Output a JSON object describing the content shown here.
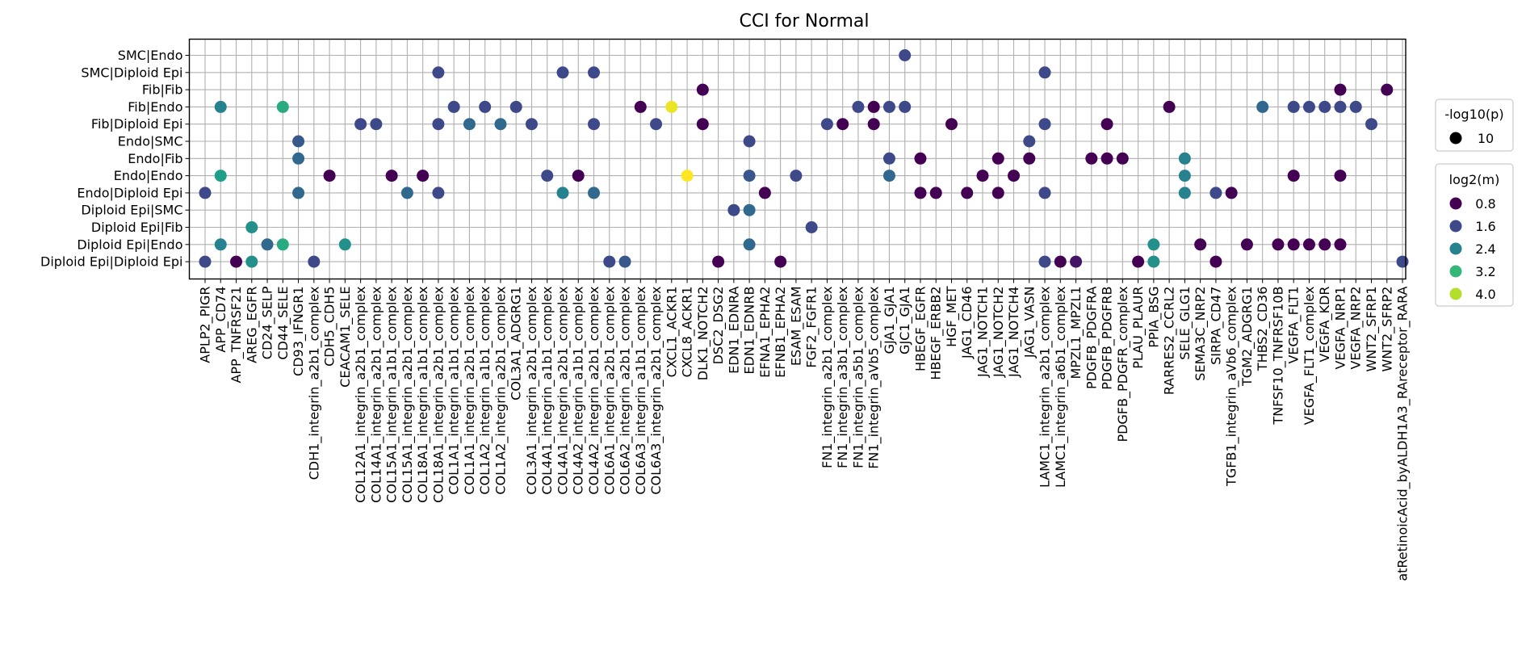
{
  "chart_data": {
    "type": "scatter",
    "title": "CCI for Normal",
    "xlabel": "",
    "ylabel": "",
    "grid": true,
    "legend_position": "right",
    "x_categories": [
      "APLP2_PIGR",
      "APP_CD74",
      "APP_TNFRSF21",
      "AREG_EGFR",
      "CD24_SELP",
      "CD44_SELE",
      "CD93_IFNGR1",
      "CDH1_integrin_a2b1_complex",
      "CDH5_CDH5",
      "CEACAM1_SELE",
      "COL12A1_integrin_a2b1_complex",
      "COL14A1_integrin_a2b1_complex",
      "COL15A1_integrin_a1b1_complex",
      "COL15A1_integrin_a2b1_complex",
      "COL18A1_integrin_a1b1_complex",
      "COL18A1_integrin_a2b1_complex",
      "COL1A1_integrin_a1b1_complex",
      "COL1A1_integrin_a2b1_complex",
      "COL1A2_integrin_a1b1_complex",
      "COL1A2_integrin_a2b1_complex",
      "COL3A1_ADGRG1",
      "COL3A1_integrin_a2b1_complex",
      "COL4A1_integrin_a1b1_complex",
      "COL4A1_integrin_a2b1_complex",
      "COL4A2_integrin_a1b1_complex",
      "COL4A2_integrin_a2b1_complex",
      "COL6A1_integrin_a2b1_complex",
      "COL6A2_integrin_a2b1_complex",
      "COL6A3_integrin_a1b1_complex",
      "COL6A3_integrin_a2b1_complex",
      "CXCL1_ACKR1",
      "CXCL8_ACKR1",
      "DLK1_NOTCH2",
      "DSC2_DSG2",
      "EDN1_EDNRA",
      "EDN1_EDNRB",
      "EFNA1_EPHA2",
      "EFNB1_EPHA2",
      "ESAM_ESAM",
      "FGF2_FGFR1",
      "FN1_integrin_a2b1_complex",
      "FN1_integrin_a3b1_complex",
      "FN1_integrin_a5b1_complex",
      "FN1_integrin_aVb5_complex",
      "GJA1_GJA1",
      "GJC1_GJA1",
      "HBEGF_EGFR",
      "HBEGF_ERBB2",
      "HGF_MET",
      "JAG1_CD46",
      "JAG1_NOTCH1",
      "JAG1_NOTCH2",
      "JAG1_NOTCH4",
      "JAG1_VASN",
      "LAMC1_integrin_a2b1_complex",
      "LAMC1_integrin_a6b1_complex",
      "MPZL1_MPZL1",
      "PDGFB_PDGFRA",
      "PDGFB_PDGFRB",
      "PDGFB_PDGFR_complex",
      "PLAU_PLAUR",
      "PPIA_BSG",
      "RARRES2_CCRL2",
      "SELE_GLG1",
      "SEMA3C_NRP2",
      "SIRPA_CD47",
      "TGFB1_integrin_aVb6_complex",
      "TGM2_ADGRG1",
      "THBS2_CD36",
      "TNFSF10_TNFRSF10B",
      "VEGFA_FLT1",
      "VEGFA_FLT1_complex",
      "VEGFA_KDR",
      "VEGFA_NRP1",
      "VEGFA_NRP2",
      "WNT2_SFRP1",
      "WNT2_SFRP2",
      "atRetinoicAcid_byALDH1A3_RAreceptor_RARA"
    ],
    "y_categories": [
      "SMC|Endo",
      "SMC|Diploid Epi",
      "Fib|Fib",
      "Fib|Endo",
      "Fib|Diploid Epi",
      "Endo|SMC",
      "Endo|Fib",
      "Endo|Endo",
      "Endo|Diploid Epi",
      "Diploid Epi|SMC",
      "Diploid Epi|Fib",
      "Diploid Epi|Endo",
      "Diploid Epi|Diploid Epi"
    ],
    "points": [
      {
        "x": "GJC1_GJA1",
        "y": "SMC|Endo",
        "log2m": 1.6
      },
      {
        "x": "COL18A1_integrin_a2b1_complex",
        "y": "SMC|Diploid Epi",
        "log2m": 1.6
      },
      {
        "x": "COL4A1_integrin_a2b1_complex",
        "y": "SMC|Diploid Epi",
        "log2m": 1.6
      },
      {
        "x": "COL4A2_integrin_a2b1_complex",
        "y": "SMC|Diploid Epi",
        "log2m": 1.6
      },
      {
        "x": "LAMC1_integrin_a2b1_complex",
        "y": "SMC|Diploid Epi",
        "log2m": 1.6
      },
      {
        "x": "DLK1_NOTCH2",
        "y": "Fib|Fib",
        "log2m": 0.8
      },
      {
        "x": "VEGFA_NRP1",
        "y": "Fib|Fib",
        "log2m": 0.8
      },
      {
        "x": "WNT2_SFRP2",
        "y": "Fib|Fib",
        "log2m": 0.8
      },
      {
        "x": "APP_CD74",
        "y": "Fib|Endo",
        "log2m": 2.4
      },
      {
        "x": "CD44_SELE",
        "y": "Fib|Endo",
        "log2m": 3.0
      },
      {
        "x": "COL1A1_integrin_a1b1_complex",
        "y": "Fib|Endo",
        "log2m": 1.6
      },
      {
        "x": "COL1A2_integrin_a1b1_complex",
        "y": "Fib|Endo",
        "log2m": 1.6
      },
      {
        "x": "COL3A1_ADGRG1",
        "y": "Fib|Endo",
        "log2m": 1.6
      },
      {
        "x": "COL6A3_integrin_a1b1_complex",
        "y": "Fib|Endo",
        "log2m": 0.8
      },
      {
        "x": "CXCL1_ACKR1",
        "y": "Fib|Endo",
        "log2m": 4.3
      },
      {
        "x": "FN1_integrin_a5b1_complex",
        "y": "Fib|Endo",
        "log2m": 1.6
      },
      {
        "x": "FN1_integrin_aVb5_complex",
        "y": "Fib|Endo",
        "log2m": 0.8
      },
      {
        "x": "GJA1_GJA1",
        "y": "Fib|Endo",
        "log2m": 1.6
      },
      {
        "x": "GJC1_GJA1",
        "y": "Fib|Endo",
        "log2m": 1.6
      },
      {
        "x": "RARRES2_CCRL2",
        "y": "Fib|Endo",
        "log2m": 0.8
      },
      {
        "x": "THBS2_CD36",
        "y": "Fib|Endo",
        "log2m": 2.0
      },
      {
        "x": "VEGFA_FLT1",
        "y": "Fib|Endo",
        "log2m": 1.6
      },
      {
        "x": "VEGFA_FLT1_complex",
        "y": "Fib|Endo",
        "log2m": 1.6
      },
      {
        "x": "VEGFA_KDR",
        "y": "Fib|Endo",
        "log2m": 1.6
      },
      {
        "x": "VEGFA_NRP1",
        "y": "Fib|Endo",
        "log2m": 1.6
      },
      {
        "x": "VEGFA_NRP2",
        "y": "Fib|Endo",
        "log2m": 1.6
      },
      {
        "x": "COL12A1_integrin_a2b1_complex",
        "y": "Fib|Diploid Epi",
        "log2m": 1.6
      },
      {
        "x": "COL14A1_integrin_a2b1_complex",
        "y": "Fib|Diploid Epi",
        "log2m": 1.6
      },
      {
        "x": "COL18A1_integrin_a2b1_complex",
        "y": "Fib|Diploid Epi",
        "log2m": 1.6
      },
      {
        "x": "COL1A1_integrin_a2b1_complex",
        "y": "Fib|Diploid Epi",
        "log2m": 2.0
      },
      {
        "x": "COL1A2_integrin_a2b1_complex",
        "y": "Fib|Diploid Epi",
        "log2m": 2.0
      },
      {
        "x": "COL3A1_integrin_a2b1_complex",
        "y": "Fib|Diploid Epi",
        "log2m": 1.6
      },
      {
        "x": "COL4A2_integrin_a2b1_complex",
        "y": "Fib|Diploid Epi",
        "log2m": 1.6
      },
      {
        "x": "COL6A3_integrin_a2b1_complex",
        "y": "Fib|Diploid Epi",
        "log2m": 1.6
      },
      {
        "x": "DLK1_NOTCH2",
        "y": "Fib|Diploid Epi",
        "log2m": 0.8
      },
      {
        "x": "FN1_integrin_a2b1_complex",
        "y": "Fib|Diploid Epi",
        "log2m": 1.6
      },
      {
        "x": "FN1_integrin_a3b1_complex",
        "y": "Fib|Diploid Epi",
        "log2m": 0.8
      },
      {
        "x": "FN1_integrin_aVb5_complex",
        "y": "Fib|Diploid Epi",
        "log2m": 0.8
      },
      {
        "x": "HGF_MET",
        "y": "Fib|Diploid Epi",
        "log2m": 0.8
      },
      {
        "x": "LAMC1_integrin_a2b1_complex",
        "y": "Fib|Diploid Epi",
        "log2m": 1.6
      },
      {
        "x": "PDGFB_PDGFRB",
        "y": "Fib|Diploid Epi",
        "log2m": 0.8
      },
      {
        "x": "WNT2_SFRP1",
        "y": "Fib|Diploid Epi",
        "log2m": 1.6
      },
      {
        "x": "CD93_IFNGR1",
        "y": "Endo|SMC",
        "log2m": 1.8
      },
      {
        "x": "EDN1_EDNRB",
        "y": "Endo|SMC",
        "log2m": 1.6
      },
      {
        "x": "JAG1_VASN",
        "y": "Endo|SMC",
        "log2m": 1.6
      },
      {
        "x": "CD93_IFNGR1",
        "y": "Endo|Fib",
        "log2m": 2.0
      },
      {
        "x": "GJA1_GJA1",
        "y": "Endo|Fib",
        "log2m": 1.6
      },
      {
        "x": "HBEGF_EGFR",
        "y": "Endo|Fib",
        "log2m": 0.8
      },
      {
        "x": "JAG1_NOTCH2",
        "y": "Endo|Fib",
        "log2m": 0.8
      },
      {
        "x": "JAG1_VASN",
        "y": "Endo|Fib",
        "log2m": 0.8
      },
      {
        "x": "PDGFB_PDGFRA",
        "y": "Endo|Fib",
        "log2m": 0.8
      },
      {
        "x": "PDGFB_PDGFRB",
        "y": "Endo|Fib",
        "log2m": 0.8
      },
      {
        "x": "PDGFB_PDGFR_complex",
        "y": "Endo|Fib",
        "log2m": 0.8
      },
      {
        "x": "SELE_GLG1",
        "y": "Endo|Fib",
        "log2m": 2.4
      },
      {
        "x": "APP_CD74",
        "y": "Endo|Endo",
        "log2m": 2.8
      },
      {
        "x": "CDH5_CDH5",
        "y": "Endo|Endo",
        "log2m": 0.8
      },
      {
        "x": "COL15A1_integrin_a1b1_complex",
        "y": "Endo|Endo",
        "log2m": 0.8
      },
      {
        "x": "COL18A1_integrin_a1b1_complex",
        "y": "Endo|Endo",
        "log2m": 0.8
      },
      {
        "x": "COL4A1_integrin_a1b1_complex",
        "y": "Endo|Endo",
        "log2m": 1.6
      },
      {
        "x": "COL4A2_integrin_a1b1_complex",
        "y": "Endo|Endo",
        "log2m": 0.8
      },
      {
        "x": "CXCL8_ACKR1",
        "y": "Endo|Endo",
        "log2m": 4.4
      },
      {
        "x": "EDN1_EDNRB",
        "y": "Endo|Endo",
        "log2m": 1.8
      },
      {
        "x": "ESAM_ESAM",
        "y": "Endo|Endo",
        "log2m": 1.6
      },
      {
        "x": "GJA1_GJA1",
        "y": "Endo|Endo",
        "log2m": 2.0
      },
      {
        "x": "JAG1_NOTCH1",
        "y": "Endo|Endo",
        "log2m": 0.8
      },
      {
        "x": "JAG1_NOTCH4",
        "y": "Endo|Endo",
        "log2m": 0.8
      },
      {
        "x": "SELE_GLG1",
        "y": "Endo|Endo",
        "log2m": 2.4
      },
      {
        "x": "VEGFA_FLT1",
        "y": "Endo|Endo",
        "log2m": 0.8
      },
      {
        "x": "VEGFA_NRP1",
        "y": "Endo|Endo",
        "log2m": 0.8
      },
      {
        "x": "APLP2_PIGR",
        "y": "Endo|Diploid Epi",
        "log2m": 1.6
      },
      {
        "x": "CD93_IFNGR1",
        "y": "Endo|Diploid Epi",
        "log2m": 2.0
      },
      {
        "x": "COL15A1_integrin_a2b1_complex",
        "y": "Endo|Diploid Epi",
        "log2m": 2.0
      },
      {
        "x": "COL18A1_integrin_a2b1_complex",
        "y": "Endo|Diploid Epi",
        "log2m": 1.6
      },
      {
        "x": "COL4A1_integrin_a2b1_complex",
        "y": "Endo|Diploid Epi",
        "log2m": 2.4
      },
      {
        "x": "COL4A2_integrin_a2b1_complex",
        "y": "Endo|Diploid Epi",
        "log2m": 2.0
      },
      {
        "x": "EFNA1_EPHA2",
        "y": "Endo|Diploid Epi",
        "log2m": 0.8
      },
      {
        "x": "HBEGF_EGFR",
        "y": "Endo|Diploid Epi",
        "log2m": 0.8
      },
      {
        "x": "HBEGF_ERBB2",
        "y": "Endo|Diploid Epi",
        "log2m": 0.8
      },
      {
        "x": "JAG1_CD46",
        "y": "Endo|Diploid Epi",
        "log2m": 0.8
      },
      {
        "x": "JAG1_NOTCH2",
        "y": "Endo|Diploid Epi",
        "log2m": 0.8
      },
      {
        "x": "LAMC1_integrin_a2b1_complex",
        "y": "Endo|Diploid Epi",
        "log2m": 1.6
      },
      {
        "x": "SELE_GLG1",
        "y": "Endo|Diploid Epi",
        "log2m": 2.4
      },
      {
        "x": "SIRPA_CD47",
        "y": "Endo|Diploid Epi",
        "log2m": 1.6
      },
      {
        "x": "TGFB1_integrin_aVb6_complex",
        "y": "Endo|Diploid Epi",
        "log2m": 0.8
      },
      {
        "x": "EDN1_EDNRA",
        "y": "Diploid Epi|SMC",
        "log2m": 1.6
      },
      {
        "x": "EDN1_EDNRB",
        "y": "Diploid Epi|SMC",
        "log2m": 2.0
      },
      {
        "x": "AREG_EGFR",
        "y": "Diploid Epi|Fib",
        "log2m": 2.6
      },
      {
        "x": "FGF2_FGFR1",
        "y": "Diploid Epi|Fib",
        "log2m": 1.6
      },
      {
        "x": "APP_CD74",
        "y": "Diploid Epi|Endo",
        "log2m": 2.4
      },
      {
        "x": "CD24_SELP",
        "y": "Diploid Epi|Endo",
        "log2m": 2.0
      },
      {
        "x": "CD44_SELE",
        "y": "Diploid Epi|Endo",
        "log2m": 3.0
      },
      {
        "x": "CEACAM1_SELE",
        "y": "Diploid Epi|Endo",
        "log2m": 2.6
      },
      {
        "x": "EDN1_EDNRB",
        "y": "Diploid Epi|Endo",
        "log2m": 2.0
      },
      {
        "x": "PPIA_BSG",
        "y": "Diploid Epi|Endo",
        "log2m": 2.6
      },
      {
        "x": "SEMA3C_NRP2",
        "y": "Diploid Epi|Endo",
        "log2m": 0.8
      },
      {
        "x": "TGM2_ADGRG1",
        "y": "Diploid Epi|Endo",
        "log2m": 0.8
      },
      {
        "x": "TNFSF10_TNFRSF10B",
        "y": "Diploid Epi|Endo",
        "log2m": 0.8
      },
      {
        "x": "VEGFA_FLT1",
        "y": "Diploid Epi|Endo",
        "log2m": 0.8
      },
      {
        "x": "VEGFA_FLT1_complex",
        "y": "Diploid Epi|Endo",
        "log2m": 0.8
      },
      {
        "x": "VEGFA_KDR",
        "y": "Diploid Epi|Endo",
        "log2m": 0.8
      },
      {
        "x": "VEGFA_NRP1",
        "y": "Diploid Epi|Endo",
        "log2m": 0.8
      },
      {
        "x": "APLP2_PIGR",
        "y": "Diploid Epi|Diploid Epi",
        "log2m": 1.6
      },
      {
        "x": "APP_TNFRSF21",
        "y": "Diploid Epi|Diploid Epi",
        "log2m": 0.8
      },
      {
        "x": "AREG_EGFR",
        "y": "Diploid Epi|Diploid Epi",
        "log2m": 2.6
      },
      {
        "x": "CDH1_integrin_a2b1_complex",
        "y": "Diploid Epi|Diploid Epi",
        "log2m": 1.6
      },
      {
        "x": "COL6A1_integrin_a2b1_complex",
        "y": "Diploid Epi|Diploid Epi",
        "log2m": 1.6
      },
      {
        "x": "COL6A2_integrin_a2b1_complex",
        "y": "Diploid Epi|Diploid Epi",
        "log2m": 1.8
      },
      {
        "x": "DSC2_DSG2",
        "y": "Diploid Epi|Diploid Epi",
        "log2m": 0.8
      },
      {
        "x": "EFNB1_EPHA2",
        "y": "Diploid Epi|Diploid Epi",
        "log2m": 0.8
      },
      {
        "x": "LAMC1_integrin_a2b1_complex",
        "y": "Diploid Epi|Diploid Epi",
        "log2m": 1.6
      },
      {
        "x": "LAMC1_integrin_a6b1_complex",
        "y": "Diploid Epi|Diploid Epi",
        "log2m": 0.8
      },
      {
        "x": "MPZL1_MPZL1",
        "y": "Diploid Epi|Diploid Epi",
        "log2m": 1.0
      },
      {
        "x": "PLAU_PLAUR",
        "y": "Diploid Epi|Diploid Epi",
        "log2m": 0.8
      },
      {
        "x": "PPIA_BSG",
        "y": "Diploid Epi|Diploid Epi",
        "log2m": 2.6
      },
      {
        "x": "SIRPA_CD47",
        "y": "Diploid Epi|Diploid Epi",
        "log2m": 0.8
      },
      {
        "x": "atRetinoicAcid_byALDH1A3_RAreceptor_RARA",
        "y": "Diploid Epi|Diploid Epi",
        "log2m": 1.6
      }
    ],
    "size_legend": {
      "title": "-log10(p)",
      "entries": [
        "10"
      ]
    },
    "color_legend": {
      "title": "log2(m)",
      "entries": [
        {
          "label": "0.8",
          "value": 0.8
        },
        {
          "label": "1.6",
          "value": 1.6
        },
        {
          "label": "2.4",
          "value": 2.4
        },
        {
          "label": "3.2",
          "value": 3.2
        },
        {
          "label": "4.0",
          "value": 4.0
        }
      ]
    },
    "color_scale": {
      "name": "viridis",
      "range": [
        0.8,
        4.4
      ]
    }
  }
}
